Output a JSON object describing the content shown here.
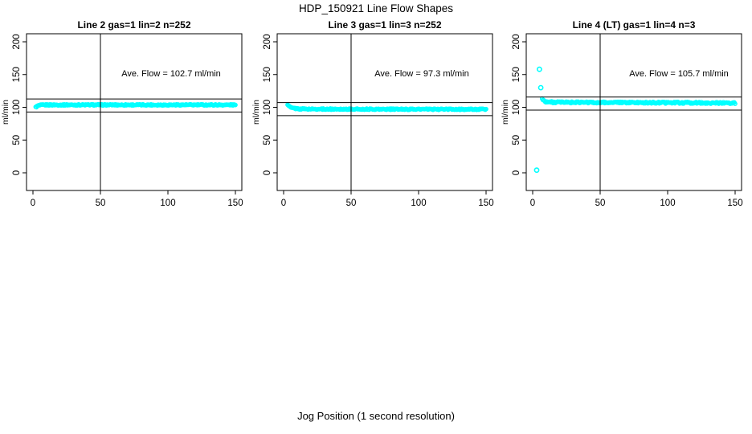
{
  "page": {
    "title": "HDP_150921  Line Flow Shapes",
    "xlabel": "Jog Position (1 second resolution)"
  },
  "colors": {
    "points": "#00FFFF",
    "axis": "#000000",
    "background": "#ffffff"
  },
  "chart_data": [
    {
      "type": "scatter",
      "title": "Line 2 gas=1 lin=2 n=252",
      "ylabel": "ml/min",
      "annotation": "Ave. Flow =  102.7  ml/min",
      "ave_flow_ml_min": 102.7,
      "n": 252,
      "xlim": [
        0,
        150
      ],
      "ylim": [
        0,
        200
      ],
      "xticks": [
        0,
        50,
        100,
        150
      ],
      "yticks": [
        0,
        50,
        100,
        150,
        200
      ],
      "vline_x": 50,
      "hlines_y": [
        112.7,
        92.7
      ],
      "band_n": 252,
      "band_x_range": [
        2,
        150
      ],
      "band_profile": [
        [
          2,
          100.0
        ],
        [
          3,
          101.5
        ],
        [
          4,
          102.6
        ],
        [
          6,
          103.4
        ],
        [
          10,
          103.7
        ],
        [
          150,
          103.7
        ]
      ],
      "band_jitter": 0.9,
      "outliers": []
    },
    {
      "type": "scatter",
      "title": "Line 3 gas=1 lin=3 n=252",
      "ylabel": "ml/min",
      "annotation": "Ave. Flow =  97.3  ml/min",
      "ave_flow_ml_min": 97.3,
      "n": 252,
      "xlim": [
        0,
        150
      ],
      "ylim": [
        0,
        200
      ],
      "xticks": [
        0,
        50,
        100,
        150
      ],
      "yticks": [
        0,
        50,
        100,
        150,
        200
      ],
      "vline_x": 50,
      "hlines_y": [
        107.3,
        87.3
      ],
      "band_n": 252,
      "band_x_range": [
        3,
        150
      ],
      "band_profile": [
        [
          3,
          104.5
        ],
        [
          4,
          101.5
        ],
        [
          6,
          99.0
        ],
        [
          10,
          97.8
        ],
        [
          20,
          97.3
        ],
        [
          150,
          96.9
        ]
      ],
      "band_jitter": 0.9,
      "outliers": []
    },
    {
      "type": "scatter",
      "title": "Line 4 (LT) gas=1 lin=4 n=3",
      "ylabel": "ml/min",
      "annotation": "Ave. Flow =  105.7  ml/min",
      "ave_flow_ml_min": 105.7,
      "n": 3,
      "xlim": [
        0,
        150
      ],
      "ylim": [
        0,
        200
      ],
      "xticks": [
        0,
        50,
        100,
        150
      ],
      "yticks": [
        0,
        50,
        100,
        150,
        200
      ],
      "vline_x": 50,
      "hlines_y": [
        115.7,
        95.7
      ],
      "band_n": 248,
      "band_x_range": [
        7,
        150
      ],
      "band_profile": [
        [
          7,
          113.0
        ],
        [
          8,
          110.5
        ],
        [
          10,
          108.5
        ],
        [
          16,
          107.6
        ],
        [
          60,
          107.3
        ],
        [
          100,
          107.0
        ],
        [
          150,
          106.6
        ]
      ],
      "band_jitter": 1.2,
      "outliers": [
        [
          3,
          4
        ],
        [
          5,
          158
        ],
        [
          6,
          130
        ]
      ]
    }
  ]
}
